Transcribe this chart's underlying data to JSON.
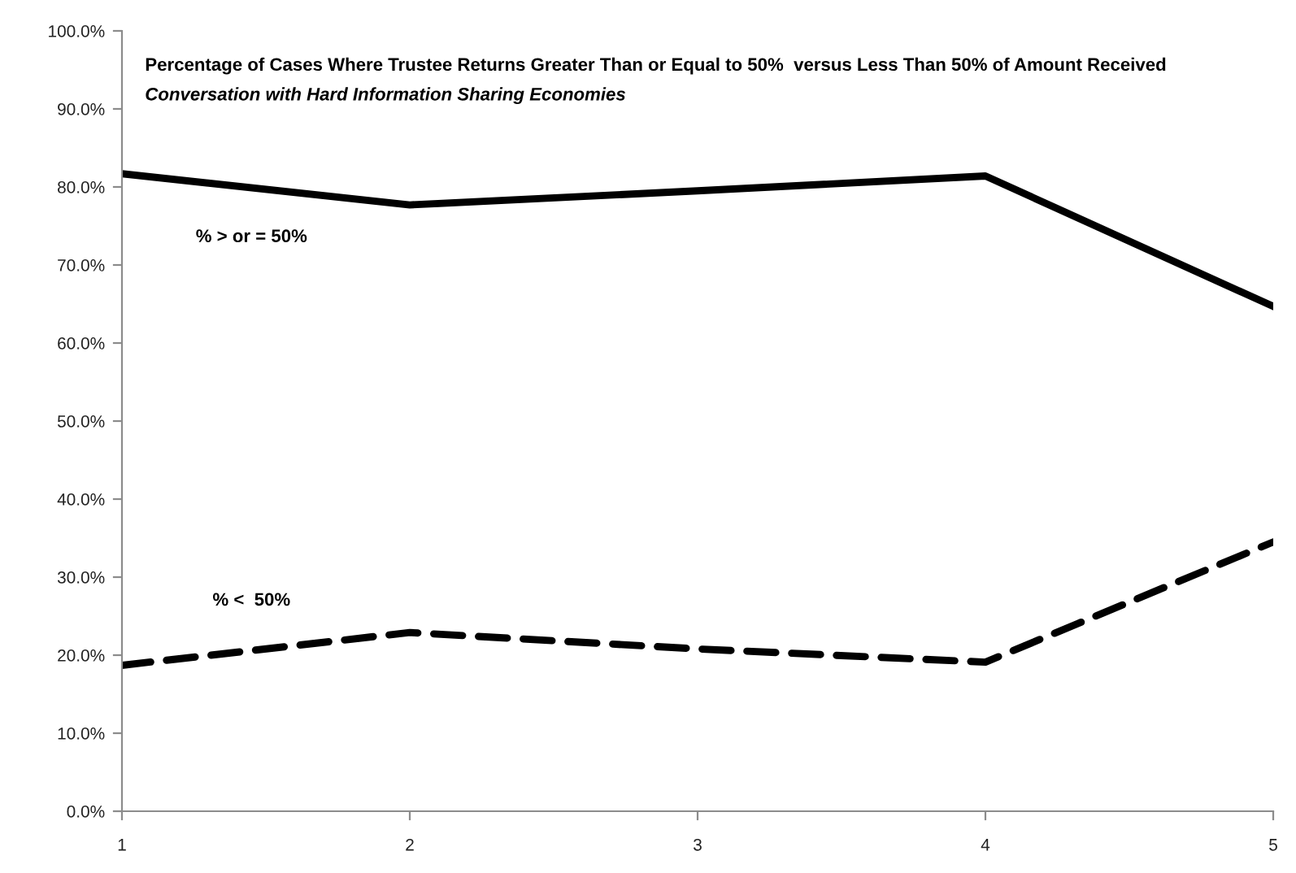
{
  "chart_data": {
    "type": "line",
    "title": "Percentage of Cases Where Trustee Returns Greater Than or Equal to 50%  versus Less Than 50% of Amount Received",
    "subtitle": "Conversation with Hard Information Sharing Economies",
    "x": [
      1,
      2,
      3,
      4,
      5
    ],
    "series": [
      {
        "name": "% > or = 50%",
        "color": "#000000",
        "line_style": "solid",
        "values": [
          81.7,
          77.7,
          79.5,
          81.4,
          64.7
        ]
      },
      {
        "name": "% <  50%",
        "color": "#000000",
        "line_style": "dashed",
        "values": [
          18.7,
          22.9,
          20.8,
          19.1,
          34.5
        ]
      }
    ],
    "xlim": [
      1,
      5
    ],
    "xticks": [
      1,
      2,
      3,
      4,
      5
    ],
    "ylim": [
      0,
      100
    ],
    "yticks": [
      {
        "value": 0,
        "label": "0.0%"
      },
      {
        "value": 10,
        "label": "10.0%"
      },
      {
        "value": 20,
        "label": "20.0%"
      },
      {
        "value": 30,
        "label": "30.0%"
      },
      {
        "value": 40,
        "label": "40.0%"
      },
      {
        "value": 50,
        "label": "50.0%"
      },
      {
        "value": 60,
        "label": "60.0%"
      },
      {
        "value": 70,
        "label": "70.0%"
      },
      {
        "value": 80,
        "label": "80.0%"
      },
      {
        "value": 90,
        "label": "90.0%"
      },
      {
        "value": 100,
        "label": "100.0%"
      }
    ],
    "grid": false,
    "legend": false,
    "marker": "none"
  }
}
